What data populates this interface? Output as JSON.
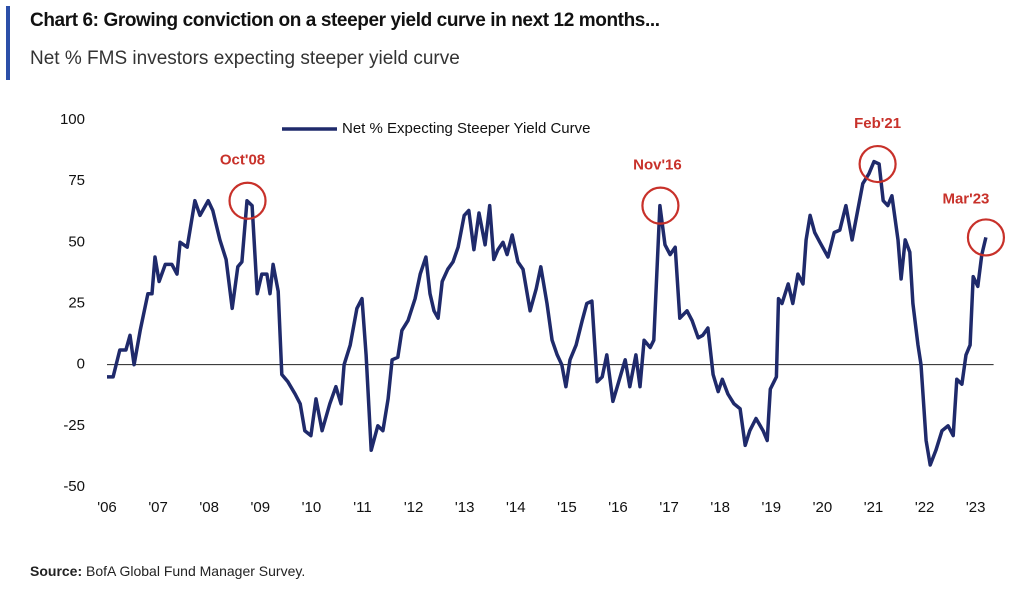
{
  "chart_data": {
    "type": "line",
    "title": "Chart 6: Growing conviction on a steeper yield curve in next 12 months...",
    "subtitle": "Net % FMS investors expecting steeper yield curve",
    "source_label": "Source:",
    "source_text": "BofA Global Fund Manager Survey.",
    "legend": "upper center",
    "xlim": [
      2006,
      2023.35
    ],
    "ylim": [
      -50,
      100
    ],
    "yticks": [
      -50,
      -25,
      0,
      25,
      50,
      75,
      100
    ],
    "xticks": [
      {
        "value": 2006,
        "label": "'06"
      },
      {
        "value": 2007,
        "label": "'07"
      },
      {
        "value": 2008,
        "label": "'08"
      },
      {
        "value": 2009,
        "label": "'09"
      },
      {
        "value": 2010,
        "label": "'10"
      },
      {
        "value": 2011,
        "label": "'11"
      },
      {
        "value": 2012,
        "label": "'12"
      },
      {
        "value": 2013,
        "label": "'13"
      },
      {
        "value": 2014,
        "label": "'14"
      },
      {
        "value": 2015,
        "label": "'15"
      },
      {
        "value": 2016,
        "label": "'16"
      },
      {
        "value": 2017,
        "label": "'17"
      },
      {
        "value": 2018,
        "label": "'18"
      },
      {
        "value": 2019,
        "label": "'19"
      },
      {
        "value": 2020,
        "label": "'20"
      },
      {
        "value": 2021,
        "label": "'21"
      },
      {
        "value": 2022,
        "label": "'22"
      },
      {
        "value": 2023,
        "label": "'23"
      }
    ],
    "x": [
      2006.0,
      2006.12,
      2006.25,
      2006.37,
      2006.45,
      2006.53,
      2006.65,
      2006.8,
      2006.88,
      2006.94,
      2007.02,
      2007.14,
      2007.27,
      2007.37,
      2007.43,
      2007.57,
      2007.72,
      2007.82,
      2007.98,
      2008.07,
      2008.21,
      2008.33,
      2008.45,
      2008.56,
      2008.64,
      2008.74,
      2008.84,
      2008.94,
      2009.03,
      2009.13,
      2009.19,
      2009.25,
      2009.35,
      2009.42,
      2009.54,
      2009.68,
      2009.78,
      2009.87,
      2009.99,
      2010.09,
      2010.21,
      2010.36,
      2010.48,
      2010.58,
      2010.64,
      2010.76,
      2010.89,
      2010.99,
      2011.07,
      2011.17,
      2011.3,
      2011.4,
      2011.5,
      2011.58,
      2011.69,
      2011.77,
      2011.89,
      2012.03,
      2012.13,
      2012.24,
      2012.32,
      2012.4,
      2012.48,
      2012.56,
      2012.67,
      2012.77,
      2012.87,
      2012.99,
      2013.08,
      2013.18,
      2013.28,
      2013.4,
      2013.49,
      2013.57,
      2013.65,
      2013.75,
      2013.83,
      2013.93,
      2014.04,
      2014.14,
      2014.28,
      2014.4,
      2014.49,
      2014.61,
      2014.71,
      2014.81,
      2014.9,
      2014.98,
      2015.06,
      2015.18,
      2015.3,
      2015.39,
      2015.49,
      2015.59,
      2015.69,
      2015.78,
      2015.9,
      2016.0,
      2016.14,
      2016.23,
      2016.35,
      2016.43,
      2016.51,
      2016.63,
      2016.7,
      2016.82,
      2016.92,
      2017.02,
      2017.12,
      2017.21,
      2017.35,
      2017.45,
      2017.57,
      2017.66,
      2017.76,
      2017.86,
      2017.96,
      2018.04,
      2018.15,
      2018.27,
      2018.39,
      2018.49,
      2018.58,
      2018.7,
      2018.84,
      2018.92,
      2018.98,
      2019.1,
      2019.14,
      2019.21,
      2019.33,
      2019.42,
      2019.52,
      2019.62,
      2019.68,
      2019.76,
      2019.85,
      2019.95,
      2020.11,
      2020.23,
      2020.34,
      2020.46,
      2020.58,
      2020.69,
      2020.79,
      2020.91,
      2021.01,
      2021.11,
      2021.19,
      2021.28,
      2021.36,
      2021.48,
      2021.54,
      2021.62,
      2021.71,
      2021.77,
      2021.87,
      2021.93,
      2022.03,
      2022.11,
      2022.22,
      2022.34,
      2022.46,
      2022.56,
      2022.63,
      2022.73,
      2022.81,
      2022.89,
      2022.95,
      2023.04,
      2023.12,
      2023.2
    ],
    "series": [
      {
        "name": "Net % Expecting Steeper Yield Curve",
        "color": "#1f2a6b",
        "values": [
          -5,
          -5,
          6,
          6,
          12,
          0,
          14,
          29,
          29,
          44,
          34,
          41,
          41,
          37,
          50,
          48,
          67,
          61,
          67,
          63,
          51,
          43,
          23,
          40,
          42,
          67,
          65,
          29,
          37,
          37,
          29,
          41,
          30,
          -4,
          -7,
          -12,
          -16,
          -27,
          -29,
          -14,
          -27,
          -16,
          -9,
          -16,
          0,
          8,
          23,
          27,
          4,
          -35,
          -25,
          -27,
          -14,
          2,
          3,
          14,
          18,
          27,
          37,
          44,
          29,
          22,
          19,
          34,
          39,
          42,
          48,
          61,
          63,
          47,
          62,
          49,
          65,
          43,
          47,
          50,
          45,
          53,
          42,
          39,
          22,
          31,
          40,
          25,
          10,
          4,
          0,
          -9,
          2,
          8,
          18,
          25,
          26,
          -7,
          -5,
          4,
          -15,
          -8,
          2,
          -9,
          4,
          -9,
          10,
          7,
          10,
          65,
          49,
          45,
          48,
          19,
          22,
          18,
          11,
          12,
          15,
          -4,
          -11,
          -6,
          -12,
          -16,
          -18,
          -33,
          -27,
          -22,
          -27,
          -31,
          -10,
          -5,
          27,
          25,
          33,
          25,
          37,
          33,
          51,
          61,
          54,
          50,
          44,
          54,
          55,
          65,
          51,
          63,
          74,
          78,
          83,
          82,
          67,
          65,
          69,
          51,
          35,
          51,
          46,
          25,
          8,
          0,
          -31,
          -41,
          -35,
          -27,
          -25,
          -29,
          -6,
          -8,
          4,
          8,
          36,
          32,
          45,
          52
        ]
      }
    ],
    "annotations": [
      {
        "text": "Oct'08",
        "x": 2008.75,
        "y": 67
      },
      {
        "text": "Nov'16",
        "x": 2016.83,
        "y": 65
      },
      {
        "text": "Feb'21",
        "x": 2021.08,
        "y": 82
      },
      {
        "text": "Mar'23",
        "x": 2023.2,
        "y": 52
      }
    ]
  }
}
